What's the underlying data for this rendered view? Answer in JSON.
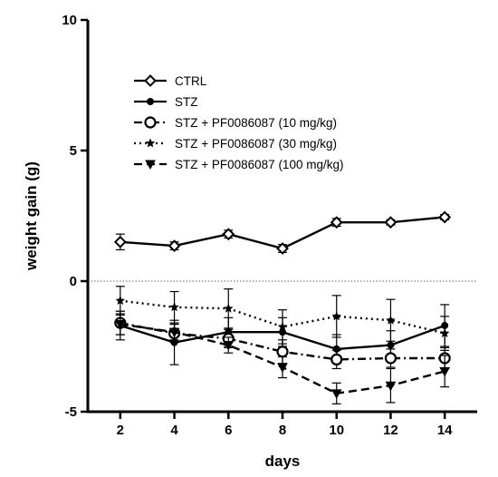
{
  "chart_data": {
    "type": "line",
    "title": "",
    "xlabel": "days",
    "ylabel": "weight gain (g)",
    "x": [
      2,
      4,
      6,
      8,
      10,
      12,
      14
    ],
    "xticks": [
      "2",
      "4",
      "6",
      "8",
      "10",
      "12",
      "14"
    ],
    "yticks": [
      "10",
      "5",
      "0",
      "-5"
    ],
    "xlim": [
      0.8,
      15.2
    ],
    "ylim": [
      -5,
      10
    ],
    "grid": false,
    "reference_line": {
      "y": 0,
      "style": "dotted"
    },
    "legend_position": "top-left",
    "series": [
      {
        "name": "CTRL",
        "line": "solid",
        "marker": "diamond-open",
        "values": [
          1.5,
          1.35,
          1.8,
          1.25,
          2.25,
          2.25,
          2.45
        ],
        "errors": [
          0.3,
          0.15,
          0.15,
          0.15,
          0.15,
          0.1,
          0.1
        ]
      },
      {
        "name": "STZ",
        "line": "solid",
        "marker": "circle-filled",
        "values": [
          -1.7,
          -2.35,
          -1.95,
          -1.95,
          -2.6,
          -2.45,
          -1.7
        ],
        "errors": [
          0.55,
          0.85,
          0.55,
          0.55,
          0.55,
          0.55,
          0.8
        ]
      },
      {
        "name": "STZ + PF0086087 (10 mg/kg)",
        "line": "dashdot",
        "marker": "circle-open",
        "values": [
          -1.6,
          -2.0,
          -2.2,
          -2.7,
          -3.0,
          -2.95,
          -2.95
        ],
        "errors": [
          0.45,
          0.35,
          0.35,
          0.45,
          0.35,
          0.35,
          0.4
        ]
      },
      {
        "name": "STZ + PF0086087 (30 mg/kg)",
        "line": "dotted",
        "marker": "star",
        "values": [
          -0.75,
          -1.0,
          -1.05,
          -1.75,
          -1.35,
          -1.5,
          -2.0
        ],
        "errors": [
          0.55,
          0.6,
          0.75,
          0.65,
          0.8,
          0.8,
          0.65
        ]
      },
      {
        "name": "STZ + PF0086087 (100 mg/kg)",
        "line": "dashed",
        "marker": "triangle-down",
        "values": [
          -1.65,
          -1.95,
          -2.45,
          -3.3,
          -4.3,
          -4.0,
          -3.45
        ],
        "errors": [
          0.4,
          0.3,
          0.3,
          0.4,
          0.4,
          0.65,
          0.6
        ]
      }
    ]
  }
}
